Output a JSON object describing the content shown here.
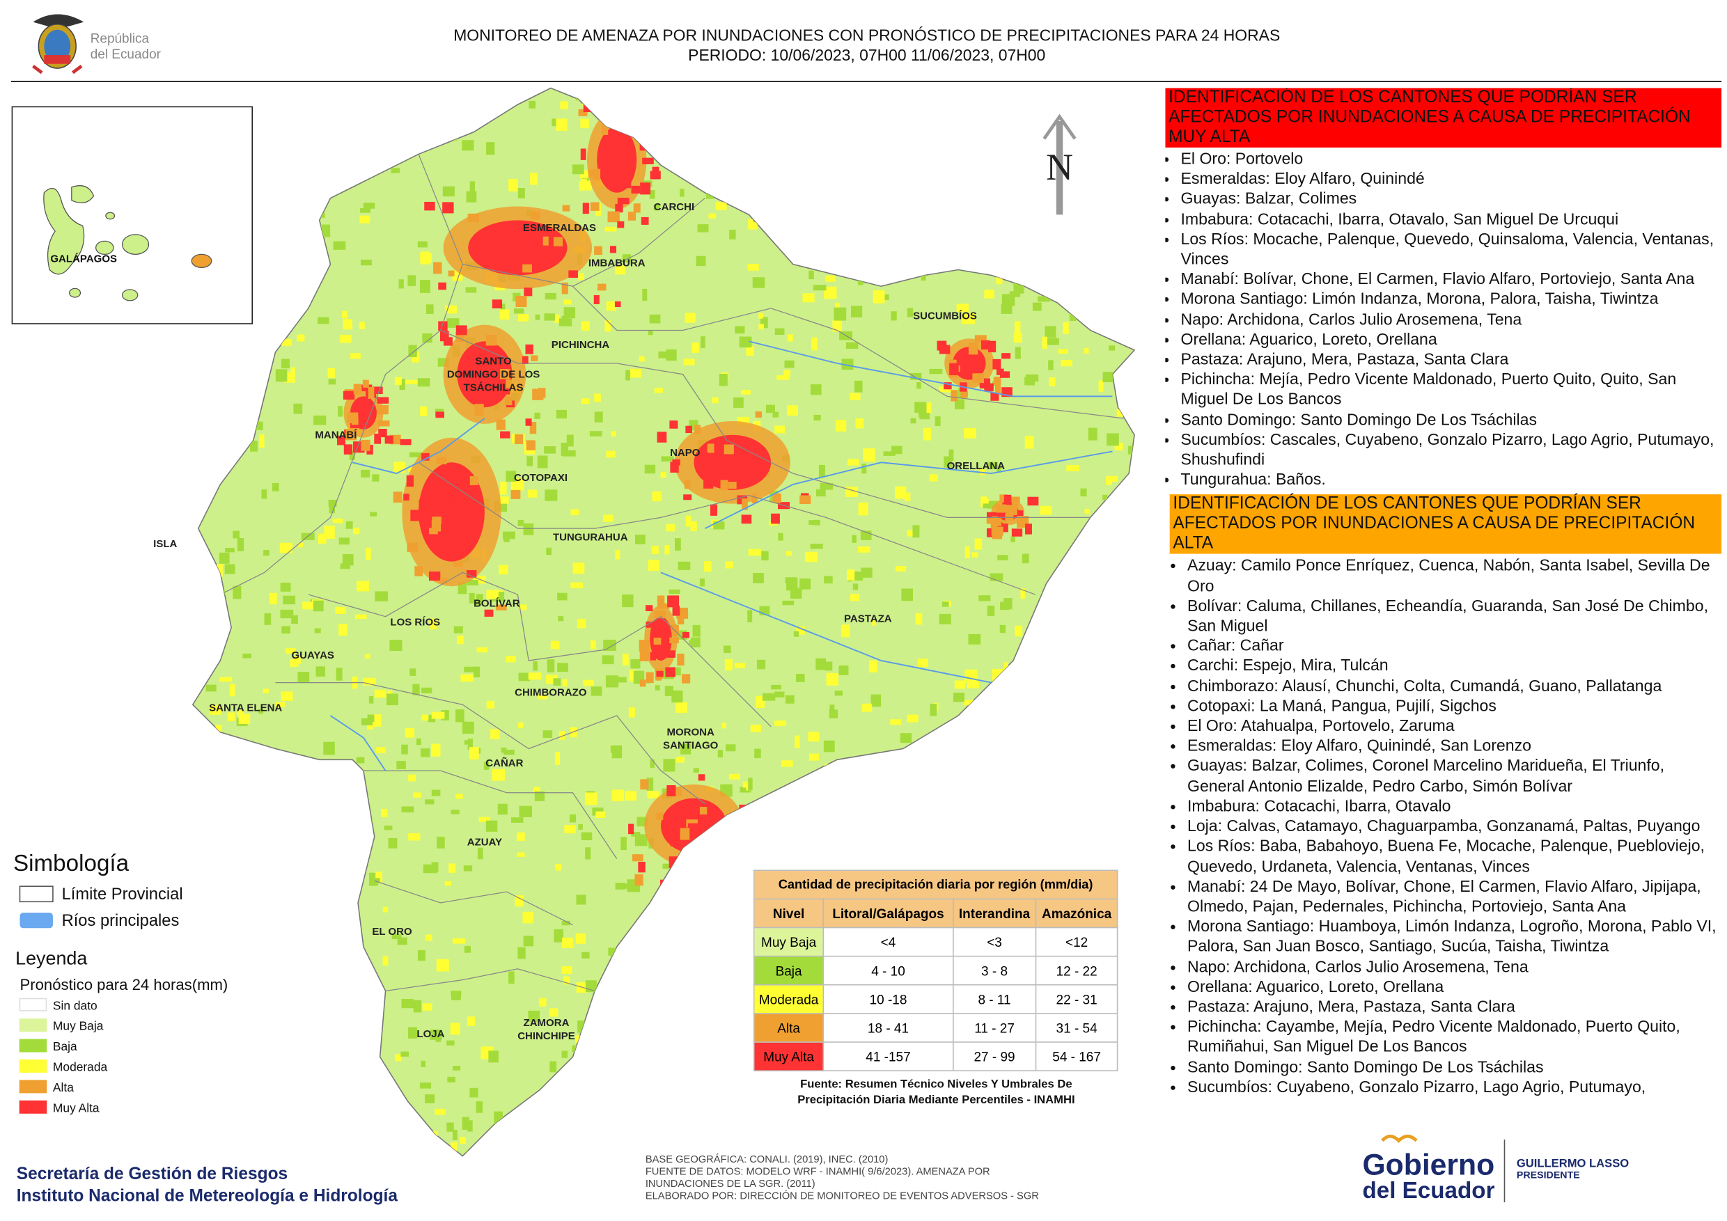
{
  "header": {
    "logo": [
      "República",
      "del Ecuador"
    ],
    "title": [
      "MONITOREO DE AMENAZA POR INUNDACIONES  CON PRONÓSTICO DE  PRECIPITACIONES PARA 24 HORAS",
      "PERIODO: 10/06/2023, 07H00 11/06/2023, 07H00"
    ]
  },
  "map": {
    "north": "N",
    "inset_label": "GALÁPAGOS",
    "labels": [
      [
        "CARCHI"
      ],
      [
        "ESMERALDAS"
      ],
      [
        "IMBABURA"
      ],
      [
        "SUCUMBÍOS"
      ],
      [
        "PICHINCHA"
      ],
      [
        "SANTO",
        "DOMINGO DE LOS",
        "TSÁCHILAS"
      ],
      [
        "MANABÍ"
      ],
      [
        "NAPO"
      ],
      [
        "ORELLANA"
      ],
      [
        "COTOPAXI"
      ],
      [
        "ISLA"
      ],
      [
        "TUNGURAHUA"
      ],
      [
        "BOLÍVAR"
      ],
      [
        "LOS RÍOS"
      ],
      [
        "PASTAZA"
      ],
      [
        "GUAYAS"
      ],
      [
        "CHIMBORAZO"
      ],
      [
        "SANTA ELENA"
      ],
      [
        "MORONA",
        "SANTIAGO"
      ],
      [
        "CAÑAR"
      ],
      [
        "AZUAY"
      ],
      [
        "EL ORO"
      ],
      [
        "LOJA"
      ],
      [
        "ZAMORA",
        "CHINCHIPE"
      ]
    ]
  },
  "legend": {
    "simbologia": {
      "title": "Simbología",
      "items": [
        "Límite Provincial",
        "Ríos principales"
      ]
    },
    "title": "Leyenda",
    "subtitle": "Pronóstico para 24 horas(mm)",
    "items": [
      {
        "label": "Sin dato",
        "color": "#ffffff"
      },
      {
        "label": "Muy Baja",
        "color": "#dcf59b"
      },
      {
        "label": "Baja",
        "color": "#a3dc3a"
      },
      {
        "label": "Moderada",
        "color": "#ffff33"
      },
      {
        "label": "Alta",
        "color": "#f0a030"
      },
      {
        "label": "Muy Alta",
        "color": "#ff3333"
      }
    ]
  },
  "table": {
    "title": "Cantidad de precipitación diaria por región (mm/dia)",
    "header": [
      "Nivel",
      "Litoral/Galápagos",
      "Interandina",
      "Amazónica"
    ],
    "rows": [
      [
        "Muy Baja",
        "<4",
        "<3",
        "<12"
      ],
      [
        "Baja",
        "4 - 10",
        "3 - 8",
        "12 - 22"
      ],
      [
        "Moderada",
        "10 -18",
        "8 - 11",
        "22 - 31"
      ],
      [
        "Alta",
        "18 - 41",
        "11 - 27",
        "31 - 54"
      ],
      [
        "Muy Alta",
        "41 -157",
        "27 - 99",
        "54 - 167"
      ]
    ],
    "source": [
      "Fuente: Resumen Técnico Niveles Y Umbrales De",
      "Precipitación Diaria Mediante Percentiles - INAMHI"
    ]
  },
  "sections": [
    {
      "heading": "IDENTIFICACIÓN DE LOS CANTONES QUE PODRÍAN SER AFECTADOS POR INUNDACIONES  A CAUSA DE PRECIPITACIÓN MUY ALTA",
      "color": "#ff0000",
      "items": [
        "El Oro: Portovelo",
        "Esmeraldas: Eloy Alfaro, Quinindé",
        "Guayas: Balzar, Colimes",
        "Imbabura: Cotacachi, Ibarra, Otavalo, San Miguel De Urcuqui",
        "Los Ríos: Mocache, Palenque, Quevedo, Quinsaloma, Valencia, Ventanas, Vinces",
        "Manabí: Bolívar, Chone, El Carmen, Flavio Alfaro, Portoviejo, Santa Ana",
        "Morona Santiago: Limón Indanza, Morona, Palora, Taisha, Tiwintza",
        "Napo: Archidona, Carlos Julio Arosemena, Tena",
        "Orellana: Aguarico, Loreto, Orellana",
        "Pastaza: Arajuno, Mera, Pastaza, Santa Clara",
        "Pichincha: Mejía, Pedro Vicente Maldonado, Puerto Quito, Quito, San Miguel De Los Bancos",
        "Santo Domingo: Santo Domingo De Los Tsáchilas",
        "Sucumbíos: Cascales, Cuyabeno, Gonzalo Pizarro, Lago Agrio, Putumayo, Shushufindi",
        "Tungurahua: Baños."
      ]
    },
    {
      "heading": "IDENTIFICACIÓN DE LOS CANTONES QUE  PODRÍAN SER AFECTADOS POR INUNDACIONES  A CAUSA DE PRECIPITACIÓN ALTA",
      "color": "#ffa500",
      "items": [
        "Azuay: Camilo Ponce Enríquez, Cuenca, Nabón, Santa Isabel, Sevilla De Oro",
        "Bolívar: Caluma, Chillanes, Echeandía, Guaranda, San José De Chimbo, San Miguel",
        "Cañar: Cañar",
        "Carchi: Espejo, Mira, Tulcán",
        "Chimborazo: Alausí, Chunchi, Colta, Cumandá, Guano, Pallatanga",
        "Cotopaxi: La Maná, Pangua, Pujilí, Sigchos",
        "El Oro: Atahualpa, Portovelo, Zaruma",
        "Esmeraldas: Eloy Alfaro, Quinindé, San Lorenzo",
        "Guayas: Balzar, Colimes, Coronel Marcelino Maridueña, El Triunfo, General Antonio Elizalde, Pedro Carbo, Simón Bolívar",
        "Imbabura: Cotacachi, Ibarra, Otavalo",
        "Loja: Calvas, Catamayo, Chaguarpamba, Gonzanamá, Paltas, Puyango",
        "Los Ríos: Baba, Babahoyo, Buena Fe, Mocache, Palenque, Puebloviejo, Quevedo, Urdaneta, Valencia, Ventanas, Vinces",
        "Manabí: 24 De Mayo, Bolívar, Chone, El Carmen, Flavio Alfaro, Jipijapa, Olmedo, Pajan, Pedernales, Pichincha, Portoviejo, Santa Ana",
        "Morona Santiago: Huamboya, Limón Indanza, Logroño, Morona, Pablo VI, Palora, San Juan Bosco, Santiago, Sucúa, Taisha, Tiwintza",
        "Napo: Archidona, Carlos Julio Arosemena, Tena",
        "Orellana: Aguarico, Loreto, Orellana",
        "Pastaza: Arajuno, Mera, Pastaza, Santa Clara",
        "Pichincha: Cayambe, Mejía, Pedro Vicente Maldonado, Puerto Quito, Rumiñahui, San Miguel De Los Bancos",
        "Santo Domingo: Santo Domingo De Los Tsáchilas",
        "Sucumbíos: Cuyabeno, Gonzalo Pizarro, Lago Agrio, Putumayo,"
      ]
    }
  ],
  "footer": {
    "org": [
      "Secretaría de Gestión de Riesgos",
      "Instituto Nacional de Metereología e Hidrología"
    ],
    "credits": [
      "BASE GEOGRÁFICA: CONALI. (2019), INEC. (2010)",
      "FUENTE DE DATOS: MODELO WRF - INAMHI( 9/6/2023).  AMENAZA POR",
      "INUNDACIONES DE LA SGR. (2011)",
      "ELABORADO POR: DIRECCIÓN DE MONITOREO DE EVENTOS ADVERSOS - SGR"
    ],
    "gobierno": [
      "Gobierno",
      "del Ecuador"
    ],
    "president": [
      "GUILLERMO LASSO",
      "PRESIDENTE"
    ]
  }
}
